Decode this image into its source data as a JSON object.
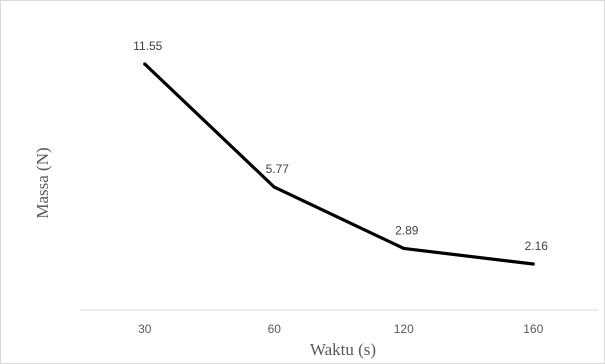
{
  "chart_data": {
    "type": "line",
    "title": "",
    "xlabel": "Waktu (s)",
    "ylabel": "Massa (N)",
    "categories": [
      "30",
      "60",
      "120",
      "160"
    ],
    "series": [
      {
        "values": [
          11.55,
          5.77,
          2.89,
          2.16
        ],
        "data_labels": [
          "11.55",
          "5.77",
          "2.89",
          "2.16"
        ]
      }
    ],
    "ylim": [
      0,
      14
    ],
    "grid": false,
    "legend": "none",
    "line_color": "#000000",
    "axis_color": "#d9d9d9"
  }
}
